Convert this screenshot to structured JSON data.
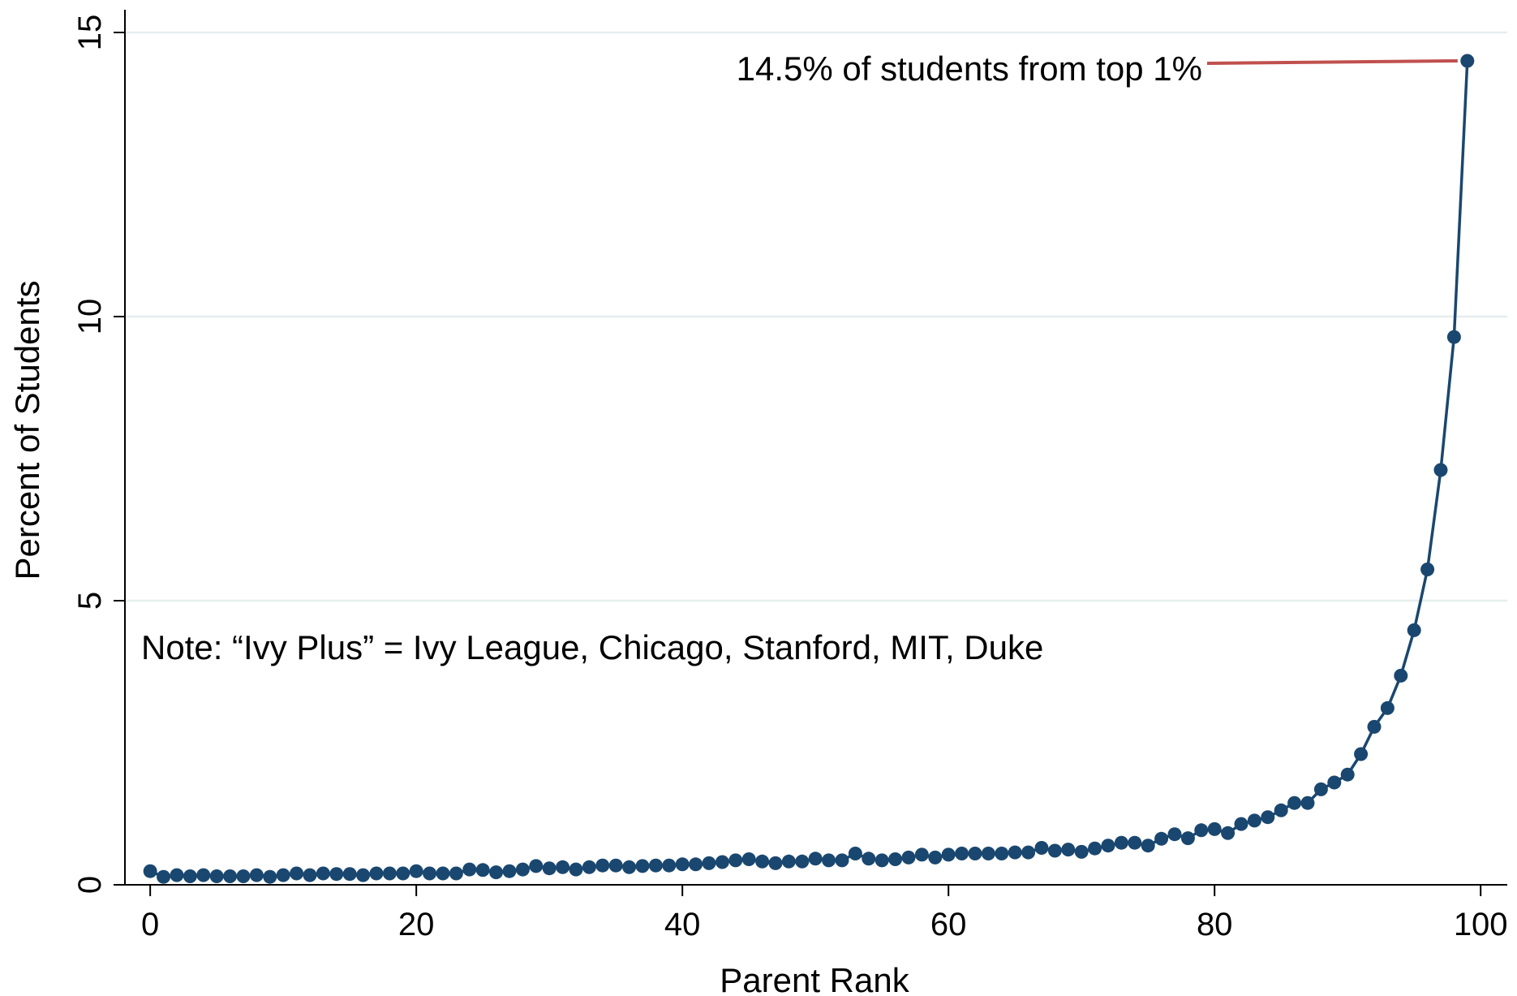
{
  "chart_data": {
    "type": "line",
    "x_label": "Parent Rank",
    "y_label": "Percent of Students",
    "annotation": "14.5% of students from top 1%",
    "note": "Note: “Ivy Plus” = Ivy League, Chicago, Stanford, MIT, Duke",
    "x": [
      0,
      1,
      2,
      3,
      4,
      5,
      6,
      7,
      8,
      9,
      10,
      11,
      12,
      13,
      14,
      15,
      16,
      17,
      18,
      19,
      20,
      21,
      22,
      23,
      24,
      25,
      26,
      27,
      28,
      29,
      30,
      31,
      32,
      33,
      34,
      35,
      36,
      37,
      38,
      39,
      40,
      41,
      42,
      43,
      44,
      45,
      46,
      47,
      48,
      49,
      50,
      51,
      52,
      53,
      54,
      55,
      56,
      57,
      58,
      59,
      60,
      61,
      62,
      63,
      64,
      65,
      66,
      67,
      68,
      69,
      70,
      71,
      72,
      73,
      74,
      75,
      76,
      77,
      78,
      79,
      80,
      81,
      82,
      83,
      84,
      85,
      86,
      87,
      88,
      89,
      90,
      91,
      92,
      93,
      94,
      95,
      96,
      97,
      98,
      99
    ],
    "values": [
      0.24,
      0.14,
      0.17,
      0.15,
      0.17,
      0.15,
      0.15,
      0.15,
      0.17,
      0.14,
      0.17,
      0.2,
      0.17,
      0.2,
      0.19,
      0.19,
      0.17,
      0.2,
      0.2,
      0.2,
      0.24,
      0.2,
      0.2,
      0.2,
      0.27,
      0.26,
      0.22,
      0.24,
      0.27,
      0.33,
      0.29,
      0.31,
      0.27,
      0.31,
      0.34,
      0.34,
      0.31,
      0.33,
      0.34,
      0.34,
      0.36,
      0.36,
      0.38,
      0.4,
      0.43,
      0.45,
      0.41,
      0.38,
      0.41,
      0.41,
      0.46,
      0.43,
      0.43,
      0.55,
      0.46,
      0.43,
      0.45,
      0.48,
      0.53,
      0.48,
      0.53,
      0.55,
      0.55,
      0.55,
      0.55,
      0.57,
      0.57,
      0.65,
      0.6,
      0.62,
      0.58,
      0.64,
      0.69,
      0.74,
      0.74,
      0.69,
      0.81,
      0.89,
      0.82,
      0.96,
      0.98,
      0.91,
      1.07,
      1.13,
      1.19,
      1.31,
      1.44,
      1.44,
      1.68,
      1.8,
      1.94,
      2.3,
      2.78,
      3.11,
      3.68,
      4.48,
      5.55,
      7.3,
      9.64,
      14.5
    ],
    "color": "#1a476f",
    "annotation_color": "#c0504d",
    "xlim": [
      -1.9,
      102
    ],
    "ylim": [
      0,
      15.4
    ],
    "xticks": [
      0,
      20,
      40,
      60,
      80,
      100
    ],
    "yticks": [
      0,
      5,
      10,
      15
    ],
    "grid": true
  }
}
